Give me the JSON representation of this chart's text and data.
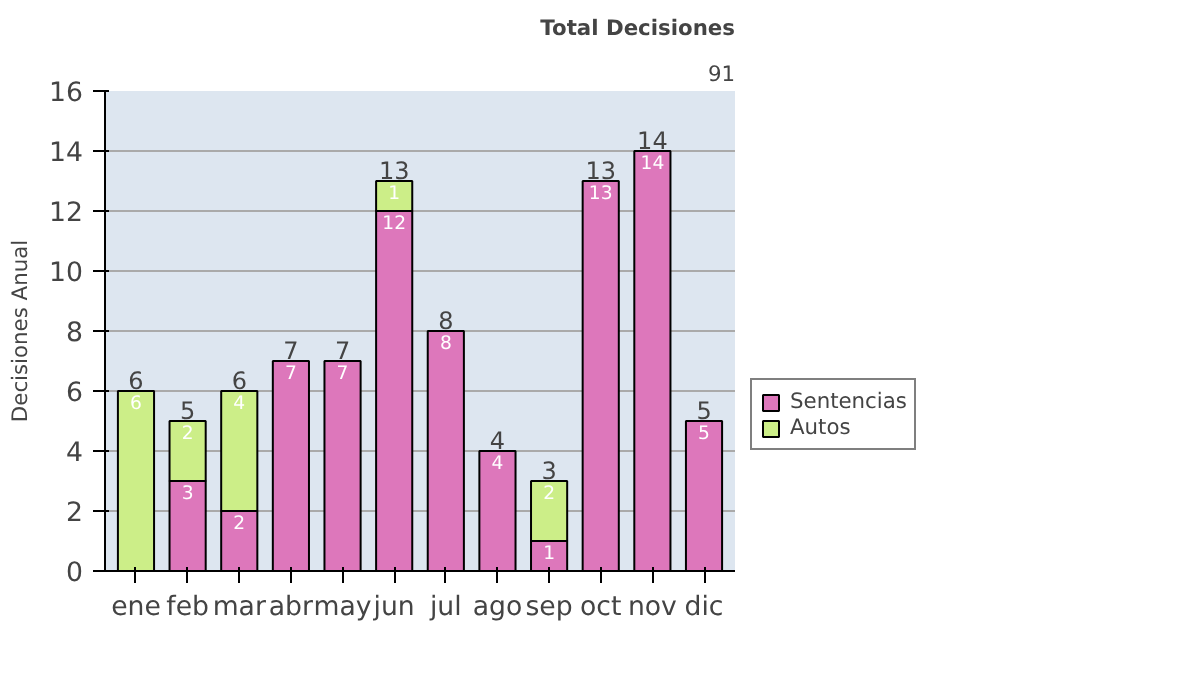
{
  "chart_data": {
    "type": "bar",
    "stacked": true,
    "ylabel": "Decisiones Anual",
    "categories": [
      "ene",
      "feb",
      "mar",
      "abr",
      "may",
      "jun",
      "jul",
      "ago",
      "sep",
      "oct",
      "nov",
      "dic"
    ],
    "series": [
      {
        "name": "Sentencias",
        "color": "#dd77bb",
        "values": [
          0,
          3,
          2,
          7,
          7,
          12,
          8,
          4,
          1,
          13,
          14,
          5
        ],
        "value_labels": [
          null,
          "3",
          "2",
          "7",
          "7",
          "12",
          "8",
          "4",
          "1",
          "13",
          "14",
          "5"
        ]
      },
      {
        "name": "Autos",
        "color": "#ccee88",
        "values": [
          6,
          2,
          4,
          0,
          0,
          1,
          0,
          0,
          2,
          0,
          0,
          0
        ],
        "value_labels": [
          "6",
          "2",
          "4",
          null,
          null,
          "1",
          null,
          null,
          "2",
          null,
          null,
          null
        ]
      }
    ],
    "totals": [
      "6",
      "5",
      "6",
      "7",
      "7",
      "13",
      "8",
      "4",
      "3",
      "13",
      "14",
      "5"
    ],
    "ylim": [
      0,
      16
    ],
    "yticks": [
      0,
      2,
      4,
      6,
      8,
      10,
      12,
      14,
      16
    ],
    "grid": "y",
    "legend": "right",
    "annotations": [
      "Total Decisiones",
      "91"
    ]
  }
}
